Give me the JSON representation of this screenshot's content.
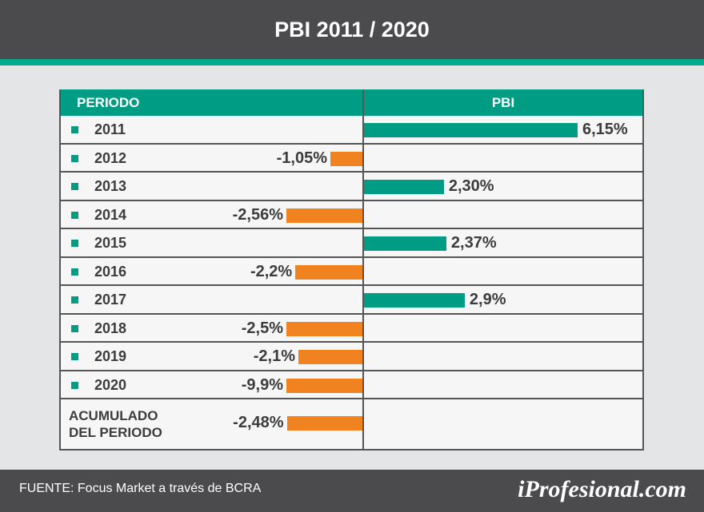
{
  "header": {
    "title": "PBI 2011 / 2020"
  },
  "table": {
    "col_periodo": "PERIODO",
    "col_pbi": "PBI"
  },
  "chart_data": {
    "type": "bar",
    "orientation": "horizontal",
    "title": "PBI 2011 / 2020",
    "categories": [
      "2011",
      "2012",
      "2013",
      "2014",
      "2015",
      "2016",
      "2017",
      "2018",
      "2019",
      "2020"
    ],
    "values": [
      6.15,
      -1.05,
      2.3,
      -2.56,
      2.37,
      -2.2,
      2.9,
      -2.5,
      -2.1,
      -9.9
    ],
    "labels": [
      "6,15%",
      "-1,05%",
      "2,30%",
      "-2,56%",
      "2,37%",
      "-2,2%",
      "2,9%",
      "-2,5%",
      "-2,1%",
      "-9,9%"
    ],
    "accumulated": {
      "line1": "ACUMULADO",
      "line2": "DEL PERIODO",
      "value": -2.48,
      "label": "-2,48%"
    },
    "colors": {
      "positive": "#009c84",
      "negative": "#f08220"
    }
  },
  "footer": {
    "source": "FUENTE: Focus Market a través de BCRA",
    "logo": "iProfesional.com"
  }
}
